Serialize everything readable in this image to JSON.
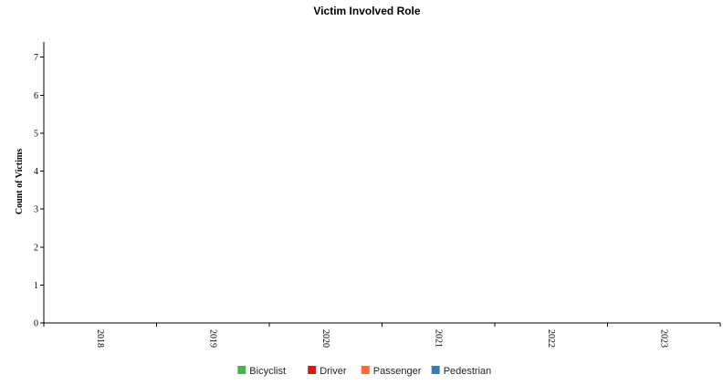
{
  "chart_data": {
    "type": "bar",
    "title": "Victim Involved Role",
    "xlabel": "",
    "ylabel": "Count of Victims",
    "categories": [
      "2018",
      "2019",
      "2020",
      "2021",
      "2022",
      "2023"
    ],
    "y_ticks": [
      "0",
      "1",
      "2",
      "3",
      "4",
      "5",
      "6",
      "7"
    ],
    "ylim": [
      0,
      7.4
    ],
    "grid": false,
    "legend_position": "bottom",
    "series": [
      {
        "name": "Bicyclist",
        "color": "#4caf50",
        "values": [
          0,
          0,
          0,
          0,
          0,
          0
        ]
      },
      {
        "name": "Driver",
        "color": "#d7191c",
        "values": [
          0,
          0,
          0,
          0,
          0,
          0
        ]
      },
      {
        "name": "Passenger",
        "color": "#fd6a3b",
        "values": [
          0,
          0,
          0,
          0,
          0,
          0
        ]
      },
      {
        "name": "Pedestrian",
        "color": "#3a7bb8",
        "values": [
          0,
          0,
          0,
          0,
          0,
          0
        ]
      }
    ]
  }
}
